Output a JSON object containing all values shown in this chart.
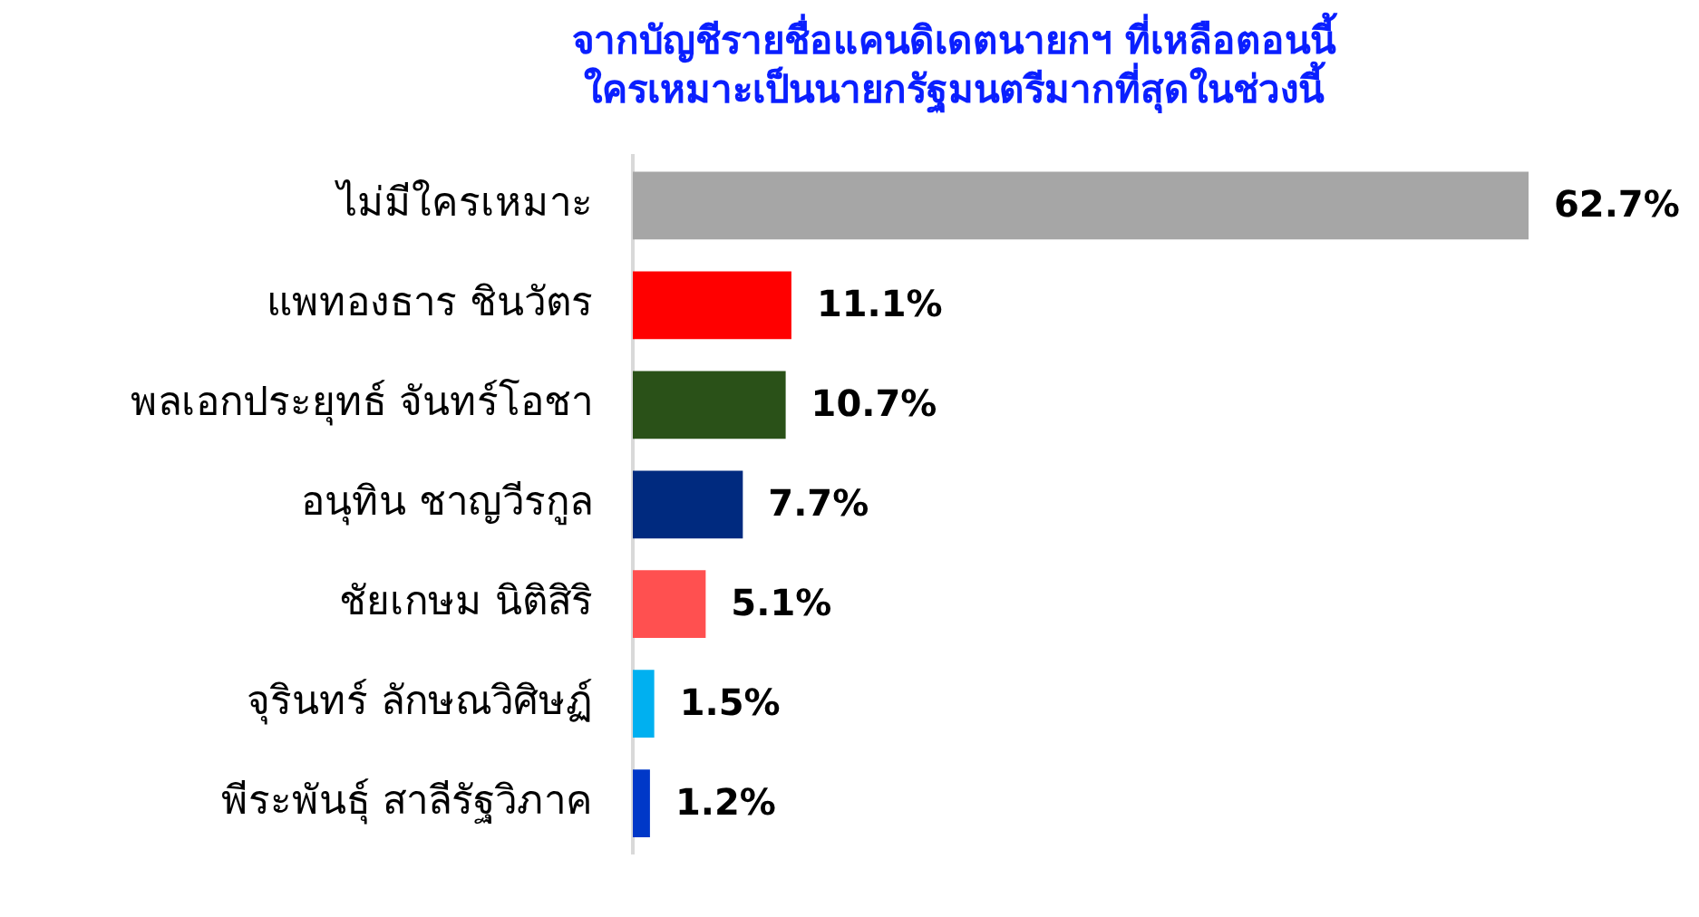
{
  "chart_data": {
    "type": "bar",
    "orientation": "horizontal",
    "title": "จากบัญชีรายชื่อแคนดิเดตนายกฯ ที่เหลือตอนนี้\nใครเหมาะเป็นนายกรัฐมนตรีมากที่สุดในช่วงนี้",
    "categories": [
      "ไม่มีใครเหมาะ",
      "แพทองธาร ชินวัตร",
      "พลเอกประยุทธ์ จันทร์โอชา",
      "อนุทิน ชาญวีรกูล",
      "ชัยเกษม นิติสิริ",
      "จุรินทร์ ลักษณวิศิษฏ์",
      "พีระพันธุ์ สาลีรัฐวิภาค"
    ],
    "values": [
      62.7,
      11.1,
      10.7,
      7.7,
      5.1,
      1.5,
      1.2
    ],
    "colors": [
      "#a6a6a6",
      "#ff0000",
      "#2a5118",
      "#002a7f",
      "#ff5050",
      "#00b0f0",
      "#0038c8"
    ],
    "value_labels": [
      "62.7%",
      "11.1%",
      "10.7%",
      "7.7%",
      "5.1%",
      "1.5%",
      "1.2%"
    ],
    "tick_labels": "y"
  }
}
